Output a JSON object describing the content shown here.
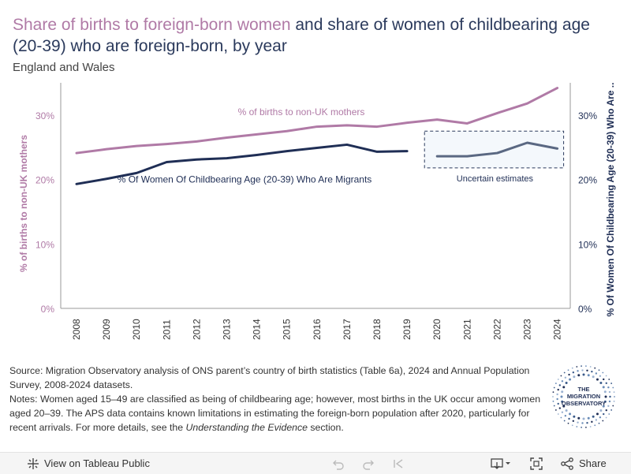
{
  "title": {
    "part1": "Share of births to foreign-born women",
    "part2": " and share of women of childbearing age (20-39) who are foreign-born, by year"
  },
  "subtitle": "England and Wales",
  "chart_data": {
    "type": "line",
    "x": [
      2008,
      2009,
      2010,
      2011,
      2012,
      2013,
      2014,
      2015,
      2016,
      2017,
      2018,
      2019,
      2020,
      2021,
      2022,
      2023,
      2024
    ],
    "series": [
      {
        "name": "% of births to non-UK mothers",
        "axis": "left",
        "color": "#b07aa6",
        "values": [
          24.1,
          24.7,
          25.2,
          25.5,
          25.9,
          26.5,
          27.0,
          27.5,
          28.2,
          28.4,
          28.2,
          28.8,
          29.3,
          28.7,
          30.3,
          31.8,
          34.2
        ]
      },
      {
        "name": "% Of Women Of Childbearing Age (20-39) Who Are Migrants",
        "axis": "right",
        "color": "#1f2e55",
        "values": [
          19.3,
          20.1,
          21.0,
          22.7,
          23.1,
          23.3,
          23.8,
          24.4,
          24.9,
          25.4,
          24.3,
          24.4,
          null,
          null,
          null,
          null,
          null
        ]
      },
      {
        "name": "Uncertain estimates",
        "axis": "right",
        "color": "#5a6882",
        "values": [
          null,
          null,
          null,
          null,
          null,
          null,
          null,
          null,
          null,
          null,
          null,
          null,
          23.6,
          23.6,
          24.1,
          25.7,
          24.8
        ]
      }
    ],
    "yleft": {
      "label": "% of births to non-UK mothers",
      "ticks": [
        "0%",
        "10%",
        "20%",
        "30%"
      ],
      "range": [
        0,
        35
      ]
    },
    "yright": {
      "label": "% Of Women Of Childbearing Age (20-39) Who Are ..",
      "ticks": [
        "0%",
        "10%",
        "20%",
        "30%"
      ],
      "range": [
        0,
        35
      ]
    },
    "annotations": {
      "births_label": "% of births to non-UK mothers",
      "women_label": "% Of Women Of Childbearing Age (20-39) Who Are Migrants",
      "uncertain_label": "Uncertain estimates"
    },
    "grid": false
  },
  "footer": {
    "source": "Source: Migration Observatory analysis of ONS parent’s country of birth statistics (Table 6a), 2024 and Annual Population Survey, 2008-2024 datasets.",
    "notes": "Notes: Women aged 15–49 are classified as being of childbearing age; however, most births in the UK occur among women aged 20–39. The APS data contains known limitations in estimating the foreign-born population after 2020, particularly for recent arrivals. For more details, see the ",
    "notes_link": "Understanding the Evidence",
    "notes_end": " section."
  },
  "logo": {
    "line1": "THE",
    "line2": "MIGRATION",
    "line3": "OBSERVATORY"
  },
  "toolbar": {
    "view_label": "View on Tableau Public",
    "share_label": "Share"
  }
}
